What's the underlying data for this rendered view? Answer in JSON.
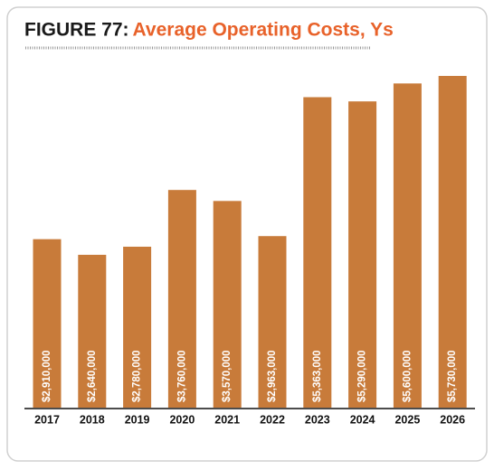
{
  "chart_data": {
    "type": "bar",
    "title_prefix": "FIGURE 77:",
    "title": "Average Operating Costs, Ys",
    "categories": [
      "2017",
      "2018",
      "2019",
      "2020",
      "2021",
      "2022",
      "2023",
      "2024",
      "2025",
      "2026"
    ],
    "values": [
      2910000,
      2640000,
      2780000,
      3760000,
      3570000,
      2963000,
      5363000,
      5290000,
      5600000,
      5730000
    ],
    "value_labels": [
      "$2,910,000",
      "$2,640,000",
      "$2,780,000",
      "$3,760,000",
      "$3,570,000",
      "$2,963,000",
      "$5,363,000",
      "$5,290,000",
      "$5,600,000",
      "$5,730,000"
    ],
    "color": "#c87b3a"
  }
}
